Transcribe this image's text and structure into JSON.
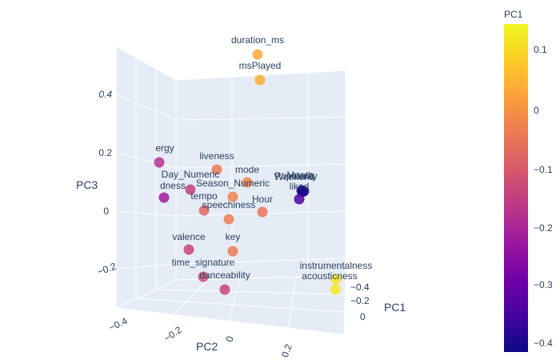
{
  "chart_data": {
    "type": "scatter",
    "xlabel": "PC1",
    "ylabel": "PC2",
    "zlabel": "PC3",
    "colorbar_title": "PC1",
    "colorscale": [
      "#0d0887",
      "#46039f",
      "#7201a8",
      "#9c179e",
      "#bd3786",
      "#d8576b",
      "#ed7953",
      "#fb9f3a",
      "#fdca26",
      "#f0f921"
    ],
    "color_range": [
      -0.42,
      0.15
    ],
    "colorbar_ticks": [
      "0.1",
      "0",
      "−0.1",
      "−0.2",
      "−0.3",
      "−0.4"
    ],
    "pc1_ticks": [
      "−0.4",
      "−0.2",
      "0"
    ],
    "pc2_ticks": [
      "−0.4",
      "−0.2",
      "0",
      "0.2"
    ],
    "pc3_ticks": [
      "0.4",
      "0.2",
      "0",
      "−0.2"
    ],
    "points": [
      {
        "label": "duration_ms",
        "color_value": 0.04
      },
      {
        "label": "msPlayed",
        "color_value": 0.04
      },
      {
        "label": "ergy",
        "color_value": -0.18
      },
      {
        "label": "liveness",
        "color_value": -0.04
      },
      {
        "label": "mode",
        "color_value": -0.02
      },
      {
        "label": "Day_Numeric",
        "color_value": -0.15
      },
      {
        "label": "dness",
        "color_value": -0.22
      },
      {
        "label": "Season_Numeric",
        "color_value": -0.02
      },
      {
        "label": "tempo",
        "color_value": -0.07
      },
      {
        "label": "speechiness",
        "color_value": -0.03
      },
      {
        "label": "Hour",
        "color_value": -0.05
      },
      {
        "label": "Popularity",
        "color_value": -0.42
      },
      {
        "label": "Weekend",
        "color_value": -0.41
      },
      {
        "label": "Month",
        "color_value": -0.4
      },
      {
        "label": "liked",
        "color_value": -0.35
      },
      {
        "label": "valence",
        "color_value": -0.14
      },
      {
        "label": "key",
        "color_value": -0.04
      },
      {
        "label": "time_signature",
        "color_value": -0.12
      },
      {
        "label": "danceability",
        "color_value": -0.14
      },
      {
        "label": "instrumentalness",
        "color_value": 0.12
      },
      {
        "label": "acousticness",
        "color_value": 0.13
      }
    ]
  }
}
